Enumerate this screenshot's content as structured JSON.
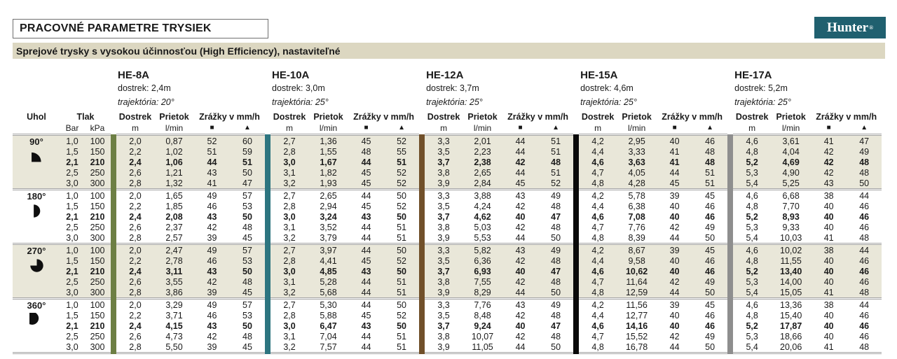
{
  "title": "PRACOVNÉ PARAMETRE TRYSIEK",
  "logo": {
    "brand": "Hunter",
    "registered": "®",
    "brand_color": "#20606f"
  },
  "subtitle": "Sprejové trysky s vysokou účinnosťou (High Efficiency), nastaviteľné",
  "table": {
    "angle_header": "Uhol",
    "pressure_header": "Tlak",
    "pressure_unit_bar": "Bar",
    "pressure_unit_kpa": "kPa",
    "col_dostrek": "Dostrek",
    "col_prietok": "Prietok",
    "col_zrazky": "Zrážky v mm/h",
    "unit_m": "m",
    "unit_lmin": "l/min",
    "sym_square": "■",
    "sym_triangle": "▲",
    "nozzles": [
      {
        "name": "HE-8A",
        "dostrek": "dostrek: 2,4m",
        "trajektoria": "trajektória: 20°",
        "bar_color": "#6d7f44"
      },
      {
        "name": "HE-10A",
        "dostrek": "dostrek: 3,0m",
        "trajektoria": "trajektória: 25°",
        "bar_color": "#2d7580"
      },
      {
        "name": "HE-12A",
        "dostrek": "dostrek: 3,7m",
        "trajektoria": "trajektória: 25°",
        "bar_color": "#71502a"
      },
      {
        "name": "HE-15A",
        "dostrek": "dostrek: 4,6m",
        "trajektoria": "trajektória: 25°",
        "bar_color": "#0a0a0a"
      },
      {
        "name": "HE-17A",
        "dostrek": "dostrek: 5,2m",
        "trajektoria": "trajektória: 25°",
        "bar_color": "#8e8e8e"
      }
    ],
    "groups": [
      {
        "angle": "90°",
        "icon": "quarter-circle",
        "rows": [
          {
            "bar": "1,0",
            "kpa": "100",
            "bold": false,
            "cells": [
              [
                "2,0",
                "0,87",
                "52",
                "60"
              ],
              [
                "2,7",
                "1,36",
                "45",
                "52"
              ],
              [
                "3,3",
                "2,01",
                "44",
                "51"
              ],
              [
                "4,2",
                "2,95",
                "40",
                "46"
              ],
              [
                "4,6",
                "3,61",
                "41",
                "47"
              ]
            ]
          },
          {
            "bar": "1,5",
            "kpa": "150",
            "bold": false,
            "cells": [
              [
                "2,2",
                "1,02",
                "51",
                "59"
              ],
              [
                "2,8",
                "1,55",
                "48",
                "55"
              ],
              [
                "3,5",
                "2,23",
                "44",
                "51"
              ],
              [
                "4,4",
                "3,33",
                "41",
                "48"
              ],
              [
                "4,8",
                "4,04",
                "42",
                "49"
              ]
            ]
          },
          {
            "bar": "2,1",
            "kpa": "210",
            "bold": true,
            "cells": [
              [
                "2,4",
                "1,06",
                "44",
                "51"
              ],
              [
                "3,0",
                "1,67",
                "44",
                "51"
              ],
              [
                "3,7",
                "2,38",
                "42",
                "48"
              ],
              [
                "4,6",
                "3,63",
                "41",
                "48"
              ],
              [
                "5,2",
                "4,69",
                "42",
                "48"
              ]
            ]
          },
          {
            "bar": "2,5",
            "kpa": "250",
            "bold": false,
            "cells": [
              [
                "2,6",
                "1,21",
                "43",
                "50"
              ],
              [
                "3,1",
                "1,82",
                "45",
                "52"
              ],
              [
                "3,8",
                "2,65",
                "44",
                "51"
              ],
              [
                "4,7",
                "4,05",
                "44",
                "51"
              ],
              [
                "5,3",
                "4,90",
                "42",
                "48"
              ]
            ]
          },
          {
            "bar": "3,0",
            "kpa": "300",
            "bold": false,
            "cells": [
              [
                "2,8",
                "1,32",
                "41",
                "47"
              ],
              [
                "3,2",
                "1,93",
                "45",
                "52"
              ],
              [
                "3,9",
                "2,84",
                "45",
                "52"
              ],
              [
                "4,8",
                "4,28",
                "45",
                "51"
              ],
              [
                "5,4",
                "5,25",
                "43",
                "50"
              ]
            ]
          }
        ]
      },
      {
        "angle": "180°",
        "icon": "half-circle",
        "rows": [
          {
            "bar": "1,0",
            "kpa": "100",
            "bold": false,
            "cells": [
              [
                "2,0",
                "1,65",
                "49",
                "57"
              ],
              [
                "2,7",
                "2,65",
                "44",
                "50"
              ],
              [
                "3,3",
                "3,88",
                "43",
                "49"
              ],
              [
                "4,2",
                "5,78",
                "39",
                "45"
              ],
              [
                "4,6",
                "6,68",
                "38",
                "44"
              ]
            ]
          },
          {
            "bar": "1,5",
            "kpa": "150",
            "bold": false,
            "cells": [
              [
                "2,2",
                "1,85",
                "46",
                "53"
              ],
              [
                "2,8",
                "2,94",
                "45",
                "52"
              ],
              [
                "3,5",
                "4,24",
                "42",
                "48"
              ],
              [
                "4,4",
                "6,38",
                "40",
                "46"
              ],
              [
                "4,8",
                "7,70",
                "40",
                "46"
              ]
            ]
          },
          {
            "bar": "2,1",
            "kpa": "210",
            "bold": true,
            "cells": [
              [
                "2,4",
                "2,08",
                "43",
                "50"
              ],
              [
                "3,0",
                "3,24",
                "43",
                "50"
              ],
              [
                "3,7",
                "4,62",
                "40",
                "47"
              ],
              [
                "4,6",
                "7,08",
                "40",
                "46"
              ],
              [
                "5,2",
                "8,93",
                "40",
                "46"
              ]
            ]
          },
          {
            "bar": "2,5",
            "kpa": "250",
            "bold": false,
            "cells": [
              [
                "2,6",
                "2,37",
                "42",
                "48"
              ],
              [
                "3,1",
                "3,52",
                "44",
                "51"
              ],
              [
                "3,8",
                "5,03",
                "42",
                "48"
              ],
              [
                "4,7",
                "7,76",
                "42",
                "49"
              ],
              [
                "5,3",
                "9,33",
                "40",
                "46"
              ]
            ]
          },
          {
            "bar": "3,0",
            "kpa": "300",
            "bold": false,
            "cells": [
              [
                "2,8",
                "2,57",
                "39",
                "45"
              ],
              [
                "3,2",
                "3,79",
                "44",
                "51"
              ],
              [
                "3,9",
                "5,53",
                "44",
                "50"
              ],
              [
                "4,8",
                "8,39",
                "44",
                "50"
              ],
              [
                "5,4",
                "10,03",
                "41",
                "48"
              ]
            ]
          }
        ]
      },
      {
        "angle": "270°",
        "icon": "three-quarter-circle",
        "rows": [
          {
            "bar": "1,0",
            "kpa": "100",
            "bold": false,
            "cells": [
              [
                "2,0",
                "2,47",
                "49",
                "57"
              ],
              [
                "2,7",
                "3,97",
                "44",
                "50"
              ],
              [
                "3,3",
                "5,82",
                "43",
                "49"
              ],
              [
                "4,2",
                "8,67",
                "39",
                "45"
              ],
              [
                "4,6",
                "10,02",
                "38",
                "44"
              ]
            ]
          },
          {
            "bar": "1,5",
            "kpa": "150",
            "bold": false,
            "cells": [
              [
                "2,2",
                "2,78",
                "46",
                "53"
              ],
              [
                "2,8",
                "4,41",
                "45",
                "52"
              ],
              [
                "3,5",
                "6,36",
                "42",
                "48"
              ],
              [
                "4,4",
                "9,58",
                "40",
                "46"
              ],
              [
                "4,8",
                "11,55",
                "40",
                "46"
              ]
            ]
          },
          {
            "bar": "2,1",
            "kpa": "210",
            "bold": true,
            "cells": [
              [
                "2,4",
                "3,11",
                "43",
                "50"
              ],
              [
                "3,0",
                "4,85",
                "43",
                "50"
              ],
              [
                "3,7",
                "6,93",
                "40",
                "47"
              ],
              [
                "4,6",
                "10,62",
                "40",
                "46"
              ],
              [
                "5,2",
                "13,40",
                "40",
                "46"
              ]
            ]
          },
          {
            "bar": "2,5",
            "kpa": "250",
            "bold": false,
            "cells": [
              [
                "2,6",
                "3,55",
                "42",
                "48"
              ],
              [
                "3,1",
                "5,28",
                "44",
                "51"
              ],
              [
                "3,8",
                "7,55",
                "42",
                "48"
              ],
              [
                "4,7",
                "11,64",
                "42",
                "49"
              ],
              [
                "5,3",
                "14,00",
                "40",
                "46"
              ]
            ]
          },
          {
            "bar": "3,0",
            "kpa": "300",
            "bold": false,
            "cells": [
              [
                "2,8",
                "3,86",
                "39",
                "45"
              ],
              [
                "3,2",
                "5,68",
                "44",
                "51"
              ],
              [
                "3,9",
                "8,29",
                "44",
                "50"
              ],
              [
                "4,8",
                "12,59",
                "44",
                "50"
              ],
              [
                "5,4",
                "15,05",
                "41",
                "48"
              ]
            ]
          }
        ]
      },
      {
        "angle": "360°",
        "icon": "full-circle",
        "rows": [
          {
            "bar": "1,0",
            "kpa": "100",
            "bold": false,
            "cells": [
              [
                "2,0",
                "3,29",
                "49",
                "57"
              ],
              [
                "2,7",
                "5,30",
                "44",
                "50"
              ],
              [
                "3,3",
                "7,76",
                "43",
                "49"
              ],
              [
                "4,2",
                "11,56",
                "39",
                "45"
              ],
              [
                "4,6",
                "13,36",
                "38",
                "44"
              ]
            ]
          },
          {
            "bar": "1,5",
            "kpa": "150",
            "bold": false,
            "cells": [
              [
                "2,2",
                "3,71",
                "46",
                "53"
              ],
              [
                "2,8",
                "5,88",
                "45",
                "52"
              ],
              [
                "3,5",
                "8,48",
                "42",
                "48"
              ],
              [
                "4,4",
                "12,77",
                "40",
                "46"
              ],
              [
                "4,8",
                "15,40",
                "40",
                "46"
              ]
            ]
          },
          {
            "bar": "2,1",
            "kpa": "210",
            "bold": true,
            "cells": [
              [
                "2,4",
                "4,15",
                "43",
                "50"
              ],
              [
                "3,0",
                "6,47",
                "43",
                "50"
              ],
              [
                "3,7",
                "9,24",
                "40",
                "47"
              ],
              [
                "4,6",
                "14,16",
                "40",
                "46"
              ],
              [
                "5,2",
                "17,87",
                "40",
                "46"
              ]
            ]
          },
          {
            "bar": "2,5",
            "kpa": "250",
            "bold": false,
            "cells": [
              [
                "2,6",
                "4,73",
                "42",
                "48"
              ],
              [
                "3,1",
                "7,04",
                "44",
                "51"
              ],
              [
                "3,8",
                "10,07",
                "42",
                "48"
              ],
              [
                "4,7",
                "15,52",
                "42",
                "49"
              ],
              [
                "5,3",
                "18,66",
                "40",
                "46"
              ]
            ]
          },
          {
            "bar": "3,0",
            "kpa": "300",
            "bold": false,
            "cells": [
              [
                "2,8",
                "5,50",
                "39",
                "45"
              ],
              [
                "3,2",
                "7,57",
                "44",
                "51"
              ],
              [
                "3,9",
                "11,05",
                "44",
                "50"
              ],
              [
                "4,8",
                "16,78",
                "44",
                "50"
              ],
              [
                "5,4",
                "20,06",
                "41",
                "48"
              ]
            ]
          }
        ]
      }
    ]
  }
}
